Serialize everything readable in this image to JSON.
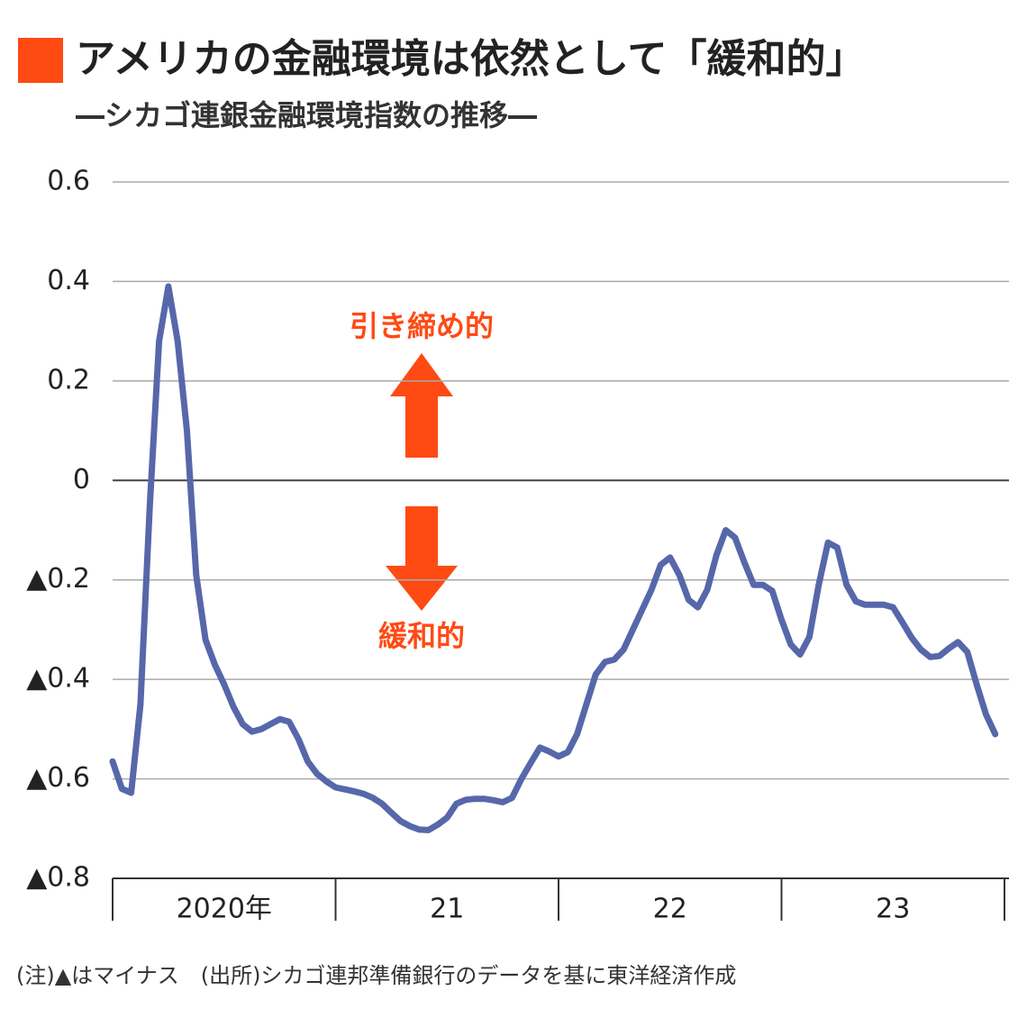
{
  "chart_data": {
    "type": "line",
    "title": "アメリカの金融環境は依然として「緩和的」",
    "subtitle": "―シカゴ連銀金融環境指数の推移―",
    "note": "(注)▲はマイナス　(出所)シカゴ連邦準備銀行のデータを基に東洋経済作成",
    "annotations": [
      "引き締め的",
      "緩和的"
    ],
    "title_marker_color": "#ff4a14",
    "annotation_color": "#ff4a14",
    "year_labels": [
      "2020年",
      "21",
      "22",
      "23"
    ],
    "categories": [
      null,
      null,
      null,
      null,
      null,
      null,
      null,
      null,
      null,
      null,
      null,
      null,
      null,
      null,
      null,
      null,
      null,
      null,
      null,
      null,
      null,
      null,
      null,
      null,
      null,
      null,
      null,
      null,
      null,
      null,
      null,
      null,
      null,
      null,
      null,
      null,
      null,
      null,
      null,
      null,
      null,
      null,
      null,
      null,
      null,
      null,
      null,
      null,
      null,
      null,
      null,
      null,
      null,
      null,
      null,
      null,
      null,
      null,
      null,
      null,
      null,
      null,
      null,
      null,
      null,
      null,
      null,
      null,
      null,
      null,
      null,
      null,
      null,
      null,
      null,
      null,
      null,
      null,
      null,
      null,
      null,
      null,
      null,
      null,
      null,
      null,
      null,
      null,
      null,
      null,
      null,
      null,
      null,
      null,
      null,
      null
    ],
    "values": [
      -0.565,
      -0.62,
      -0.628,
      -0.45,
      -0.05,
      0.28,
      0.39,
      0.28,
      0.1,
      -0.19,
      -0.32,
      -0.37,
      -0.41,
      -0.455,
      -0.49,
      -0.505,
      -0.5,
      -0.49,
      -0.48,
      -0.485,
      -0.52,
      -0.565,
      -0.59,
      -0.605,
      -0.617,
      -0.621,
      -0.625,
      -0.63,
      -0.638,
      -0.65,
      -0.668,
      -0.685,
      -0.695,
      -0.702,
      -0.703,
      -0.692,
      -0.678,
      -0.65,
      -0.642,
      -0.64,
      -0.64,
      -0.643,
      -0.647,
      -0.638,
      -0.6,
      -0.568,
      -0.537,
      -0.545,
      -0.555,
      -0.546,
      -0.51,
      -0.45,
      -0.39,
      -0.365,
      -0.36,
      -0.34,
      -0.3,
      -0.26,
      -0.22,
      -0.17,
      -0.155,
      -0.19,
      -0.24,
      -0.255,
      -0.22,
      -0.15,
      -0.1,
      -0.115,
      -0.165,
      -0.21,
      -0.21,
      -0.222,
      -0.28,
      -0.33,
      -0.35,
      -0.315,
      -0.21,
      -0.125,
      -0.135,
      -0.21,
      -0.243,
      -0.25,
      -0.25,
      -0.25,
      -0.255,
      -0.285,
      -0.316,
      -0.34,
      -0.355,
      -0.353,
      -0.338,
      -0.325,
      -0.345,
      -0.41,
      -0.47,
      -0.51
    ],
    "color": "#5667aa",
    "ylim": [
      -0.8,
      0.6
    ],
    "yticks": [
      {
        "value": -0.8,
        "label": "▲0.8"
      },
      {
        "value": -0.6,
        "label": "▲0.6"
      },
      {
        "value": -0.4,
        "label": "▲0.4"
      },
      {
        "value": -0.2,
        "label": "▲0.2"
      },
      0,
      0.2,
      0.4,
      0.6
    ],
    "grid": true
  }
}
